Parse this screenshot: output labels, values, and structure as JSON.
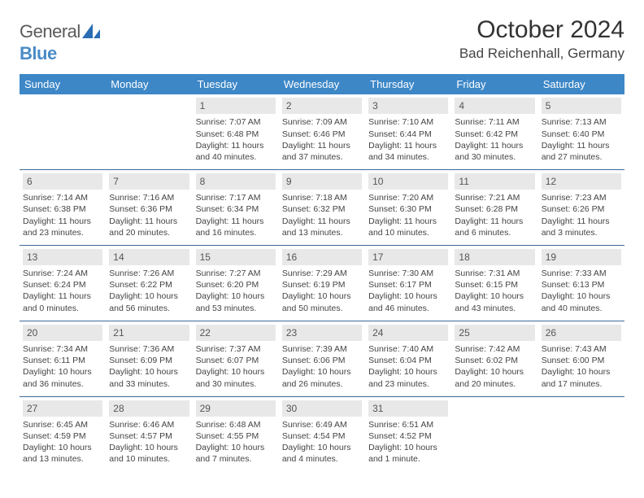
{
  "brand": {
    "part1": "General",
    "part2": "Blue"
  },
  "title": "October 2024",
  "location": "Bad Reichenhall, Germany",
  "colors": {
    "header_bg": "#3d87c7",
    "header_text": "#ffffff",
    "daynum_bg": "#e8e8e8",
    "row_border": "#3d6a9a",
    "brand_blue": "#4a8cc7",
    "text": "#444444"
  },
  "day_headers": [
    "Sunday",
    "Monday",
    "Tuesday",
    "Wednesday",
    "Thursday",
    "Friday",
    "Saturday"
  ],
  "weeks": [
    [
      {
        "n": "",
        "sr": "",
        "ss": "",
        "d1": "",
        "d2": ""
      },
      {
        "n": "",
        "sr": "",
        "ss": "",
        "d1": "",
        "d2": ""
      },
      {
        "n": "1",
        "sr": "Sunrise: 7:07 AM",
        "ss": "Sunset: 6:48 PM",
        "d1": "Daylight: 11 hours",
        "d2": "and 40 minutes."
      },
      {
        "n": "2",
        "sr": "Sunrise: 7:09 AM",
        "ss": "Sunset: 6:46 PM",
        "d1": "Daylight: 11 hours",
        "d2": "and 37 minutes."
      },
      {
        "n": "3",
        "sr": "Sunrise: 7:10 AM",
        "ss": "Sunset: 6:44 PM",
        "d1": "Daylight: 11 hours",
        "d2": "and 34 minutes."
      },
      {
        "n": "4",
        "sr": "Sunrise: 7:11 AM",
        "ss": "Sunset: 6:42 PM",
        "d1": "Daylight: 11 hours",
        "d2": "and 30 minutes."
      },
      {
        "n": "5",
        "sr": "Sunrise: 7:13 AM",
        "ss": "Sunset: 6:40 PM",
        "d1": "Daylight: 11 hours",
        "d2": "and 27 minutes."
      }
    ],
    [
      {
        "n": "6",
        "sr": "Sunrise: 7:14 AM",
        "ss": "Sunset: 6:38 PM",
        "d1": "Daylight: 11 hours",
        "d2": "and 23 minutes."
      },
      {
        "n": "7",
        "sr": "Sunrise: 7:16 AM",
        "ss": "Sunset: 6:36 PM",
        "d1": "Daylight: 11 hours",
        "d2": "and 20 minutes."
      },
      {
        "n": "8",
        "sr": "Sunrise: 7:17 AM",
        "ss": "Sunset: 6:34 PM",
        "d1": "Daylight: 11 hours",
        "d2": "and 16 minutes."
      },
      {
        "n": "9",
        "sr": "Sunrise: 7:18 AM",
        "ss": "Sunset: 6:32 PM",
        "d1": "Daylight: 11 hours",
        "d2": "and 13 minutes."
      },
      {
        "n": "10",
        "sr": "Sunrise: 7:20 AM",
        "ss": "Sunset: 6:30 PM",
        "d1": "Daylight: 11 hours",
        "d2": "and 10 minutes."
      },
      {
        "n": "11",
        "sr": "Sunrise: 7:21 AM",
        "ss": "Sunset: 6:28 PM",
        "d1": "Daylight: 11 hours",
        "d2": "and 6 minutes."
      },
      {
        "n": "12",
        "sr": "Sunrise: 7:23 AM",
        "ss": "Sunset: 6:26 PM",
        "d1": "Daylight: 11 hours",
        "d2": "and 3 minutes."
      }
    ],
    [
      {
        "n": "13",
        "sr": "Sunrise: 7:24 AM",
        "ss": "Sunset: 6:24 PM",
        "d1": "Daylight: 11 hours",
        "d2": "and 0 minutes."
      },
      {
        "n": "14",
        "sr": "Sunrise: 7:26 AM",
        "ss": "Sunset: 6:22 PM",
        "d1": "Daylight: 10 hours",
        "d2": "and 56 minutes."
      },
      {
        "n": "15",
        "sr": "Sunrise: 7:27 AM",
        "ss": "Sunset: 6:20 PM",
        "d1": "Daylight: 10 hours",
        "d2": "and 53 minutes."
      },
      {
        "n": "16",
        "sr": "Sunrise: 7:29 AM",
        "ss": "Sunset: 6:19 PM",
        "d1": "Daylight: 10 hours",
        "d2": "and 50 minutes."
      },
      {
        "n": "17",
        "sr": "Sunrise: 7:30 AM",
        "ss": "Sunset: 6:17 PM",
        "d1": "Daylight: 10 hours",
        "d2": "and 46 minutes."
      },
      {
        "n": "18",
        "sr": "Sunrise: 7:31 AM",
        "ss": "Sunset: 6:15 PM",
        "d1": "Daylight: 10 hours",
        "d2": "and 43 minutes."
      },
      {
        "n": "19",
        "sr": "Sunrise: 7:33 AM",
        "ss": "Sunset: 6:13 PM",
        "d1": "Daylight: 10 hours",
        "d2": "and 40 minutes."
      }
    ],
    [
      {
        "n": "20",
        "sr": "Sunrise: 7:34 AM",
        "ss": "Sunset: 6:11 PM",
        "d1": "Daylight: 10 hours",
        "d2": "and 36 minutes."
      },
      {
        "n": "21",
        "sr": "Sunrise: 7:36 AM",
        "ss": "Sunset: 6:09 PM",
        "d1": "Daylight: 10 hours",
        "d2": "and 33 minutes."
      },
      {
        "n": "22",
        "sr": "Sunrise: 7:37 AM",
        "ss": "Sunset: 6:07 PM",
        "d1": "Daylight: 10 hours",
        "d2": "and 30 minutes."
      },
      {
        "n": "23",
        "sr": "Sunrise: 7:39 AM",
        "ss": "Sunset: 6:06 PM",
        "d1": "Daylight: 10 hours",
        "d2": "and 26 minutes."
      },
      {
        "n": "24",
        "sr": "Sunrise: 7:40 AM",
        "ss": "Sunset: 6:04 PM",
        "d1": "Daylight: 10 hours",
        "d2": "and 23 minutes."
      },
      {
        "n": "25",
        "sr": "Sunrise: 7:42 AM",
        "ss": "Sunset: 6:02 PM",
        "d1": "Daylight: 10 hours",
        "d2": "and 20 minutes."
      },
      {
        "n": "26",
        "sr": "Sunrise: 7:43 AM",
        "ss": "Sunset: 6:00 PM",
        "d1": "Daylight: 10 hours",
        "d2": "and 17 minutes."
      }
    ],
    [
      {
        "n": "27",
        "sr": "Sunrise: 6:45 AM",
        "ss": "Sunset: 4:59 PM",
        "d1": "Daylight: 10 hours",
        "d2": "and 13 minutes."
      },
      {
        "n": "28",
        "sr": "Sunrise: 6:46 AM",
        "ss": "Sunset: 4:57 PM",
        "d1": "Daylight: 10 hours",
        "d2": "and 10 minutes."
      },
      {
        "n": "29",
        "sr": "Sunrise: 6:48 AM",
        "ss": "Sunset: 4:55 PM",
        "d1": "Daylight: 10 hours",
        "d2": "and 7 minutes."
      },
      {
        "n": "30",
        "sr": "Sunrise: 6:49 AM",
        "ss": "Sunset: 4:54 PM",
        "d1": "Daylight: 10 hours",
        "d2": "and 4 minutes."
      },
      {
        "n": "31",
        "sr": "Sunrise: 6:51 AM",
        "ss": "Sunset: 4:52 PM",
        "d1": "Daylight: 10 hours",
        "d2": "and 1 minute."
      },
      {
        "n": "",
        "sr": "",
        "ss": "",
        "d1": "",
        "d2": ""
      },
      {
        "n": "",
        "sr": "",
        "ss": "",
        "d1": "",
        "d2": ""
      }
    ]
  ]
}
